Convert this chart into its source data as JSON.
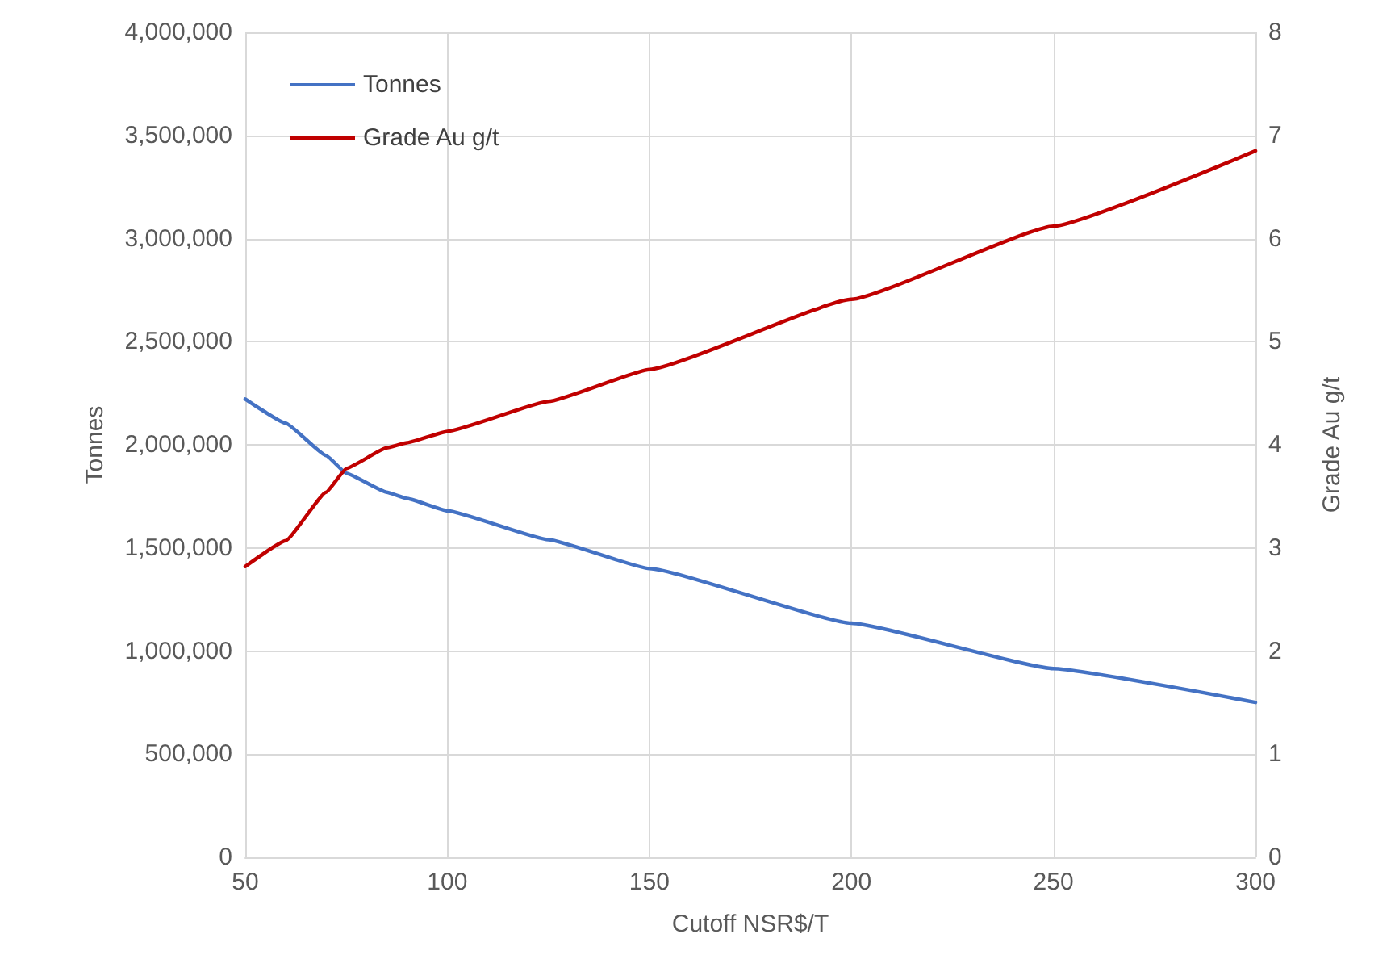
{
  "chart_data": {
    "type": "line",
    "xlabel": "Cutoff NSR$/T",
    "ylabel": "Tonnes",
    "y2label": "Grade Au g/t",
    "x": [
      50,
      60,
      70,
      75,
      85,
      90,
      100,
      125,
      150,
      200,
      250,
      300
    ],
    "series": [
      {
        "name": "Tonnes",
        "color": "#4472c4",
        "values": [
          2222000,
          2105000,
          1948000,
          1862000,
          1770000,
          1740000,
          1680000,
          1540000,
          1400000,
          1135000,
          915000,
          751000
        ]
      },
      {
        "name": "Grade Au g/t",
        "color": "#c00000",
        "axis": "y2",
        "values": [
          2.82,
          3.07,
          3.54,
          3.77,
          3.97,
          4.02,
          4.13,
          4.42,
          4.73,
          5.41,
          6.12,
          6.85
        ]
      }
    ],
    "xlim": [
      50,
      300
    ],
    "xticks": [
      50,
      100,
      150,
      200,
      250,
      300
    ],
    "ylim": [
      0,
      4000000
    ],
    "yticks": [
      0,
      {
        "value": 500000,
        "label": "500,000"
      },
      {
        "value": 1000000,
        "label": "1,000,000"
      },
      {
        "value": 1500000,
        "label": "1,500,000"
      },
      {
        "value": 2000000,
        "label": "2,000,000"
      },
      {
        "value": 2500000,
        "label": "2,500,000"
      },
      {
        "value": 3000000,
        "label": "3,000,000"
      },
      {
        "value": 3500000,
        "label": "3,500,000"
      },
      {
        "value": 4000000,
        "label": "4,000,000"
      }
    ],
    "y2lim": [
      0,
      8
    ],
    "y2ticks": [
      0,
      1,
      2,
      3,
      4,
      5,
      6,
      7,
      8
    ],
    "grid": true,
    "legend": "top left",
    "marker": "none",
    "line_style": "solid"
  }
}
